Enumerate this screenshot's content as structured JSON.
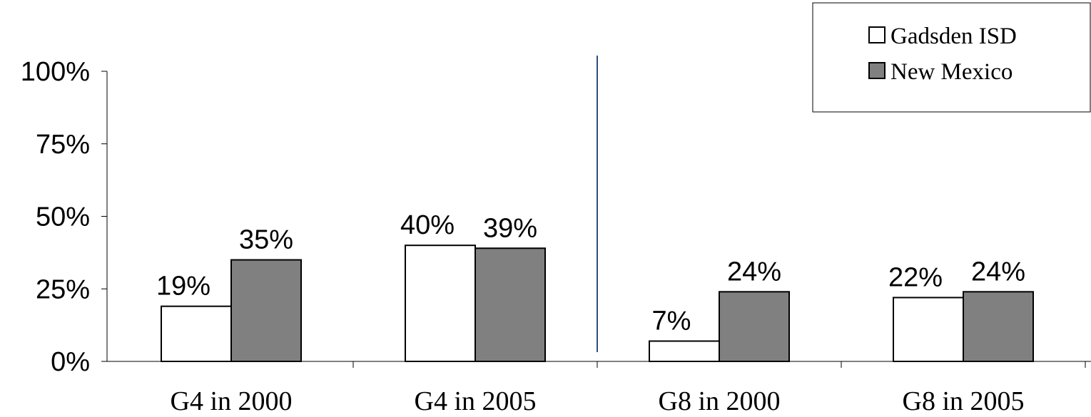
{
  "chart_data": {
    "type": "bar",
    "categories": [
      "G4 in 2000",
      "G4 in 2005",
      "G8 in 2000",
      "G8 in 2005"
    ],
    "series": [
      {
        "name": "Gadsden ISD",
        "values": [
          19,
          40,
          7,
          22
        ],
        "labels": [
          "19%",
          "40%",
          "7%",
          "22%"
        ],
        "color": "#ffffff"
      },
      {
        "name": "New Mexico",
        "values": [
          35,
          39,
          24,
          24
        ],
        "labels": [
          "35%",
          "39%",
          "24%",
          "24%"
        ],
        "color": "#808080"
      }
    ],
    "yticks": [
      "0%",
      "25%",
      "50%",
      "75%",
      "100%"
    ],
    "ylim": [
      0,
      100
    ],
    "legend_position": "top-right",
    "grid": false,
    "divider": "vertical line between G4 in 2005 and G8 in 2000",
    "divider_color": "#2f4f7f"
  }
}
